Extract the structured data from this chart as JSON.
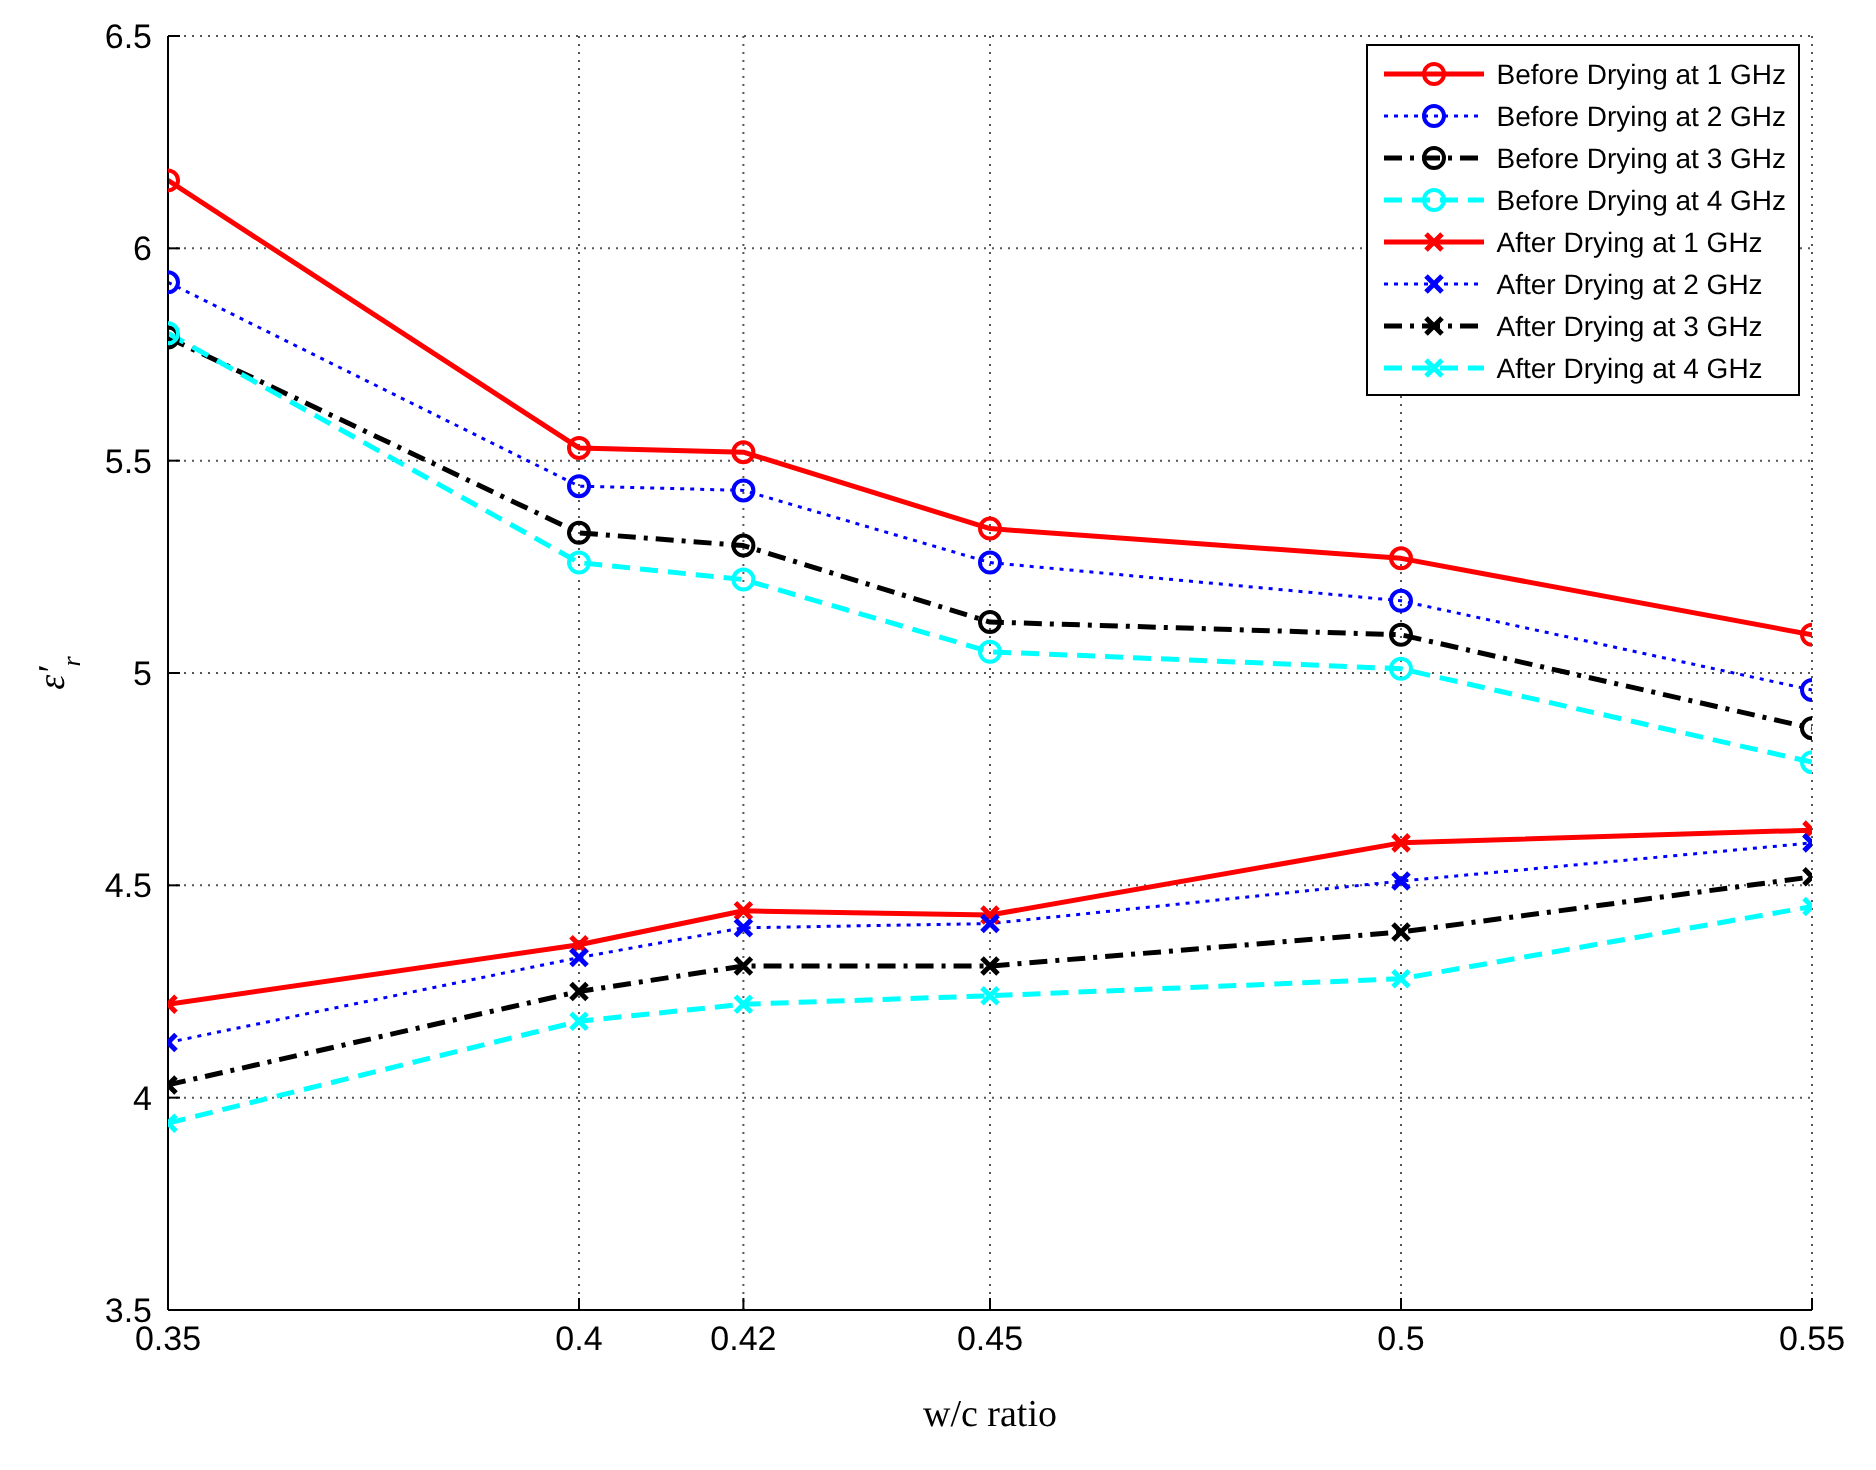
{
  "chart_data": {
    "type": "line",
    "xlabel": "w/c ratio",
    "ylabel": "ε′$_{r}$",
    "x": [
      0.35,
      0.4,
      0.42,
      0.45,
      0.5,
      0.55
    ],
    "xlim": [
      0.35,
      0.55
    ],
    "xticks": [
      0.35,
      0.4,
      0.42,
      0.45,
      0.5,
      0.55
    ],
    "ylim": [
      3.5,
      6.5
    ],
    "yticks": [
      3.5,
      4,
      4.5,
      5,
      5.5,
      6,
      6.5
    ],
    "grid": true,
    "legend": "top right",
    "series": [
      {
        "name": "Before Drying at 1 GHz",
        "color": "#ff0000",
        "marker": "circle",
        "line_style": "solid",
        "values": [
          6.16,
          5.53,
          5.52,
          5.34,
          5.27,
          5.09
        ]
      },
      {
        "name": "Before Drying at 2 GHz",
        "color": "#0000ff",
        "marker": "circle",
        "line_style": "dotted",
        "values": [
          5.92,
          5.44,
          5.43,
          5.26,
          5.17,
          4.96
        ]
      },
      {
        "name": "Before Drying at 3 GHz",
        "color": "#000000",
        "marker": "circle",
        "line_style": "dashdot",
        "values": [
          5.79,
          5.33,
          5.3,
          5.12,
          5.09,
          4.87
        ]
      },
      {
        "name": "Before Drying at 4 GHz",
        "color": "#00ffff",
        "marker": "circle",
        "line_style": "dashed",
        "values": [
          5.8,
          5.26,
          5.22,
          5.05,
          5.01,
          4.79
        ]
      },
      {
        "name": "After Drying at 1 GHz",
        "color": "#ff0000",
        "marker": "cross",
        "line_style": "solid",
        "values": [
          4.22,
          4.36,
          4.44,
          4.43,
          4.6,
          4.63
        ]
      },
      {
        "name": "After Drying at 2 GHz",
        "color": "#0000ff",
        "marker": "cross",
        "line_style": "dotted",
        "values": [
          4.13,
          4.33,
          4.4,
          4.41,
          4.51,
          4.6
        ]
      },
      {
        "name": "After Drying at 3 GHz",
        "color": "#000000",
        "marker": "cross",
        "line_style": "dashdot",
        "values": [
          4.03,
          4.25,
          4.31,
          4.31,
          4.39,
          4.52
        ]
      },
      {
        "name": "After Drying at 4 GHz",
        "color": "#00ffff",
        "marker": "cross",
        "line_style": "dashed",
        "values": [
          3.94,
          4.18,
          4.22,
          4.24,
          4.28,
          4.45
        ]
      }
    ]
  }
}
